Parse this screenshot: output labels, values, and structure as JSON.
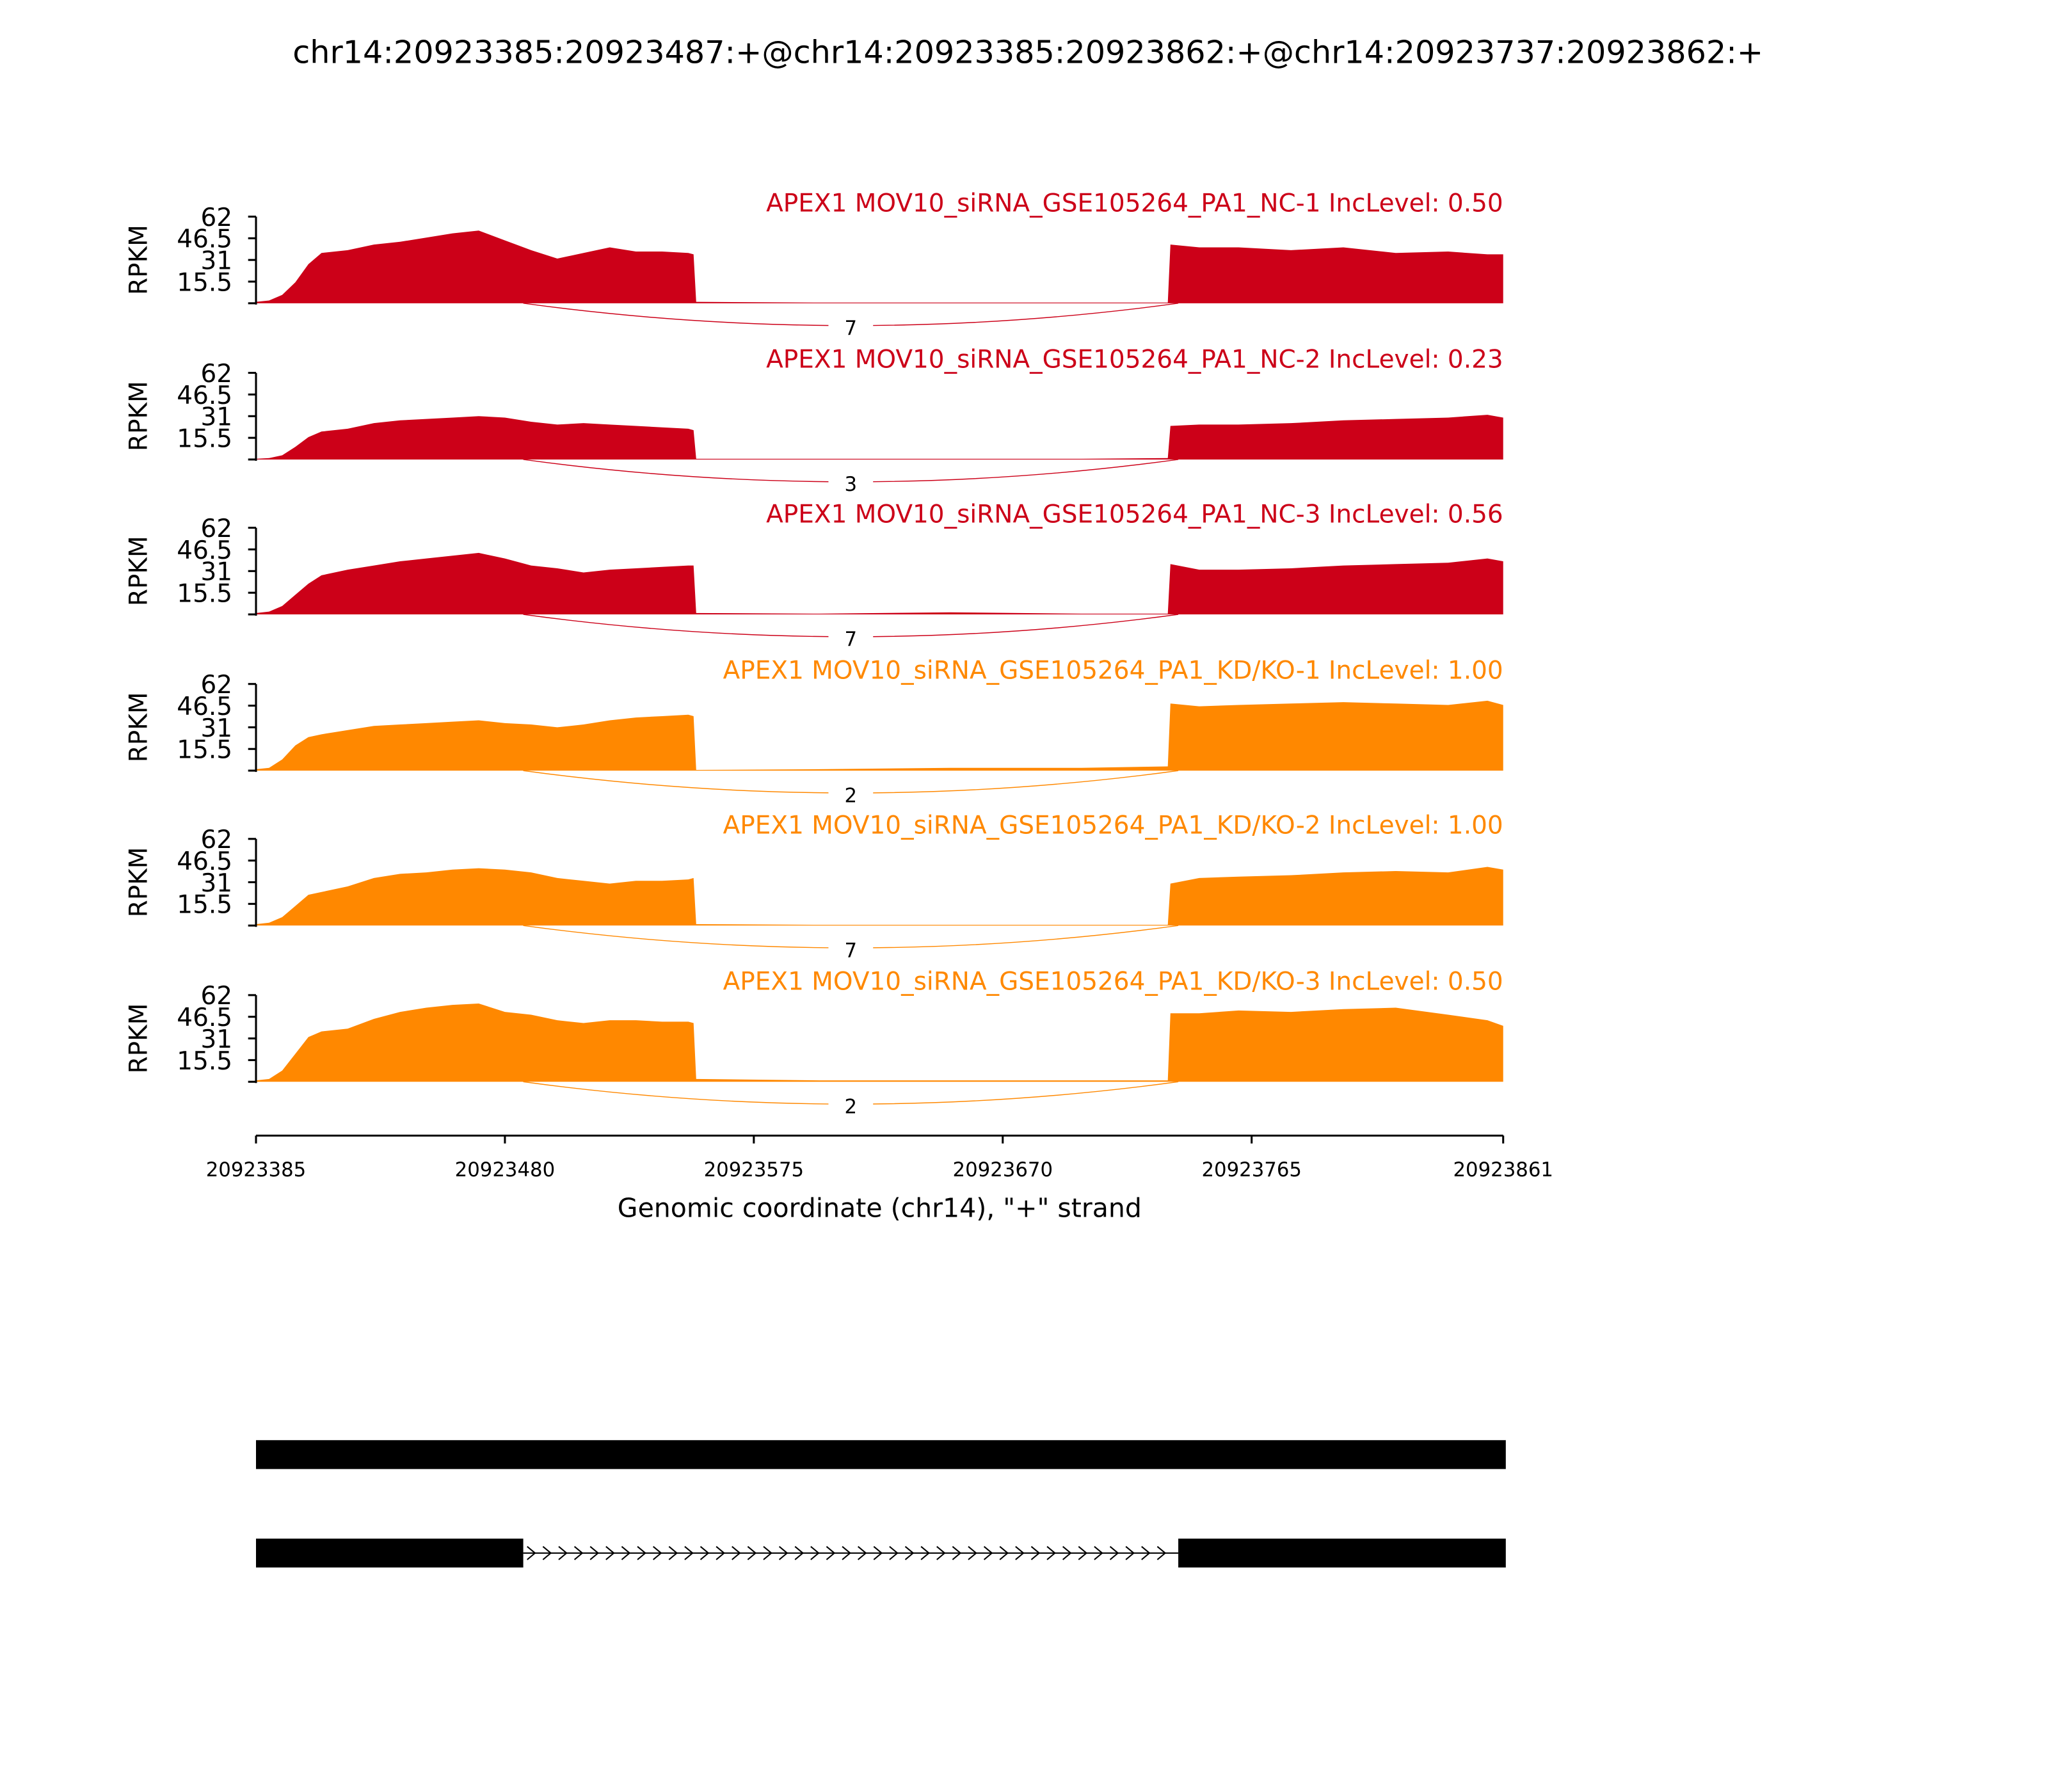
{
  "chart_data": {
    "type": "sashimi",
    "title": "chr14:20923385:20923487:+@chr14:20923385:20923862:+@chr14:20923737:20923862:+",
    "ylabel": "RPKM",
    "xlabel": "Genomic coordinate (chr14), \"+\" strand",
    "ylim": [
      0,
      62
    ],
    "yticks": [
      15.5,
      31,
      46.5,
      62
    ],
    "xlim": [
      20923385,
      20923861
    ],
    "xticks": [
      20923385,
      20923480,
      20923575,
      20923670,
      20923765,
      20923861
    ],
    "junction_span": [
      20923487,
      20923737
    ],
    "x": [
      20923385,
      20923390,
      20923395,
      20923400,
      20923405,
      20923410,
      20923420,
      20923430,
      20923440,
      20923450,
      20923460,
      20923470,
      20923480,
      20923490,
      20923500,
      20923510,
      20923520,
      20923530,
      20923540,
      20923550,
      20923552,
      20923553,
      20923600,
      20923650,
      20923700,
      20923733,
      20923734,
      20923745,
      20923760,
      20923780,
      20923800,
      20923820,
      20923840,
      20923855,
      20923861
    ],
    "series": [
      {
        "name": "APEX1 MOV10_siRNA_GSE105264_PA1_NC-1 IncLevel: 0.50",
        "color": "#cc0018",
        "junction": 7,
        "values": [
          1,
          2,
          6,
          15,
          28,
          36,
          38,
          42,
          44,
          47,
          50,
          52,
          45,
          38,
          32,
          36,
          40,
          37,
          37,
          36,
          35,
          1,
          0.5,
          0.5,
          0.5,
          0.5,
          42,
          40,
          40,
          38,
          40,
          36,
          37,
          35,
          35
        ]
      },
      {
        "name": "APEX1 MOV10_siRNA_GSE105264_PA1_NC-2 IncLevel: 0.23",
        "color": "#cc0018",
        "junction": 3,
        "values": [
          0.5,
          1,
          3,
          9,
          16,
          20,
          22,
          26,
          28,
          29,
          30,
          31,
          30,
          27,
          25,
          26,
          25,
          24,
          23,
          22,
          21,
          0.5,
          0.5,
          0.5,
          0.5,
          1,
          24,
          25,
          25,
          26,
          28,
          29,
          30,
          32,
          30
        ]
      },
      {
        "name": "APEX1 MOV10_siRNA_GSE105264_PA1_NC-3 IncLevel: 0.56",
        "color": "#cc0018",
        "junction": 7,
        "values": [
          1,
          2,
          6,
          14,
          22,
          28,
          32,
          35,
          38,
          40,
          42,
          44,
          40,
          35,
          33,
          30,
          32,
          33,
          34,
          35,
          35,
          1,
          0.5,
          1.5,
          0.5,
          0.5,
          36,
          32,
          32,
          33,
          35,
          36,
          37,
          40,
          38
        ]
      },
      {
        "name": "APEX1 MOV10_siRNA_GSE105264_PA1_KD/KO-1 IncLevel: 1.00",
        "color": "#ff8800",
        "junction": 2,
        "values": [
          1,
          2,
          8,
          18,
          24,
          26,
          29,
          32,
          33,
          34,
          35,
          36,
          34,
          33,
          31,
          33,
          36,
          38,
          39,
          40,
          39,
          0.5,
          1,
          2,
          2,
          3,
          48,
          46,
          47,
          48,
          49,
          48,
          47,
          50,
          47
        ]
      },
      {
        "name": "APEX1 MOV10_siRNA_GSE105264_PA1_KD/KO-2 IncLevel: 1.00",
        "color": "#ff8800",
        "junction": 7,
        "values": [
          1,
          2,
          6,
          14,
          22,
          24,
          28,
          34,
          37,
          38,
          40,
          41,
          40,
          38,
          34,
          32,
          30,
          32,
          32,
          33,
          34,
          1,
          0.5,
          0.5,
          0.5,
          0.5,
          30,
          34,
          35,
          36,
          38,
          39,
          38,
          42,
          40
        ]
      },
      {
        "name": "APEX1 MOV10_siRNA_GSE105264_PA1_KD/KO-3 IncLevel: 0.50",
        "color": "#ff8800",
        "junction": 2,
        "values": [
          1,
          2,
          8,
          20,
          32,
          36,
          38,
          45,
          50,
          53,
          55,
          56,
          50,
          48,
          44,
          42,
          44,
          44,
          43,
          43,
          42,
          2,
          1,
          1,
          1,
          1,
          49,
          49,
          51,
          50,
          52,
          53,
          48,
          44,
          40
        ]
      }
    ],
    "gene_models": [
      {
        "exons": [
          [
            20923385,
            20923862
          ]
        ]
      },
      {
        "exons": [
          [
            20923385,
            20923487
          ],
          [
            20923737,
            20923862
          ]
        ]
      }
    ]
  }
}
